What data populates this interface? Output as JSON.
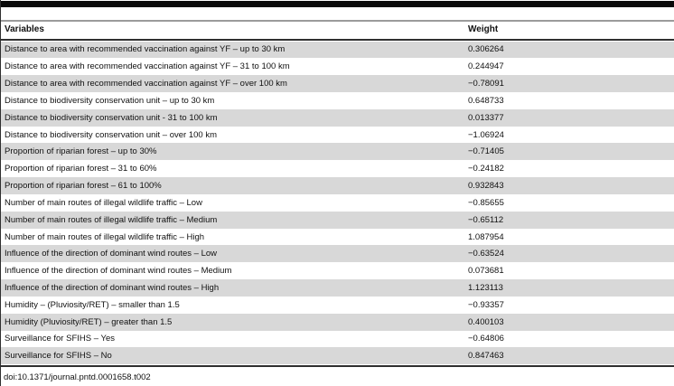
{
  "colors": {
    "top_bar": "#0a0a0a",
    "rule_gray": "#9b9b9b",
    "rule_dark": "#2f2f2f",
    "row_shade": "#d8d8d8"
  },
  "table": {
    "columns": [
      "Variables",
      "Weight"
    ],
    "rows": [
      {
        "variable": "Distance to area with recommended vaccination against YF – up to 30 km",
        "weight": "0.306264"
      },
      {
        "variable": "Distance to area with recommended vaccination against YF – 31 to 100 km",
        "weight": "0.244947"
      },
      {
        "variable": "Distance to area with recommended vaccination against YF – over 100 km",
        "weight": "−0.78091"
      },
      {
        "variable": "Distance to biodiversity conservation unit – up to 30 km",
        "weight": "0.648733"
      },
      {
        "variable": "Distance to biodiversity conservation unit - 31 to 100 km",
        "weight": "0.013377"
      },
      {
        "variable": "Distance to biodiversity conservation unit – over 100 km",
        "weight": "−1.06924"
      },
      {
        "variable": "Proportion of riparian forest – up to 30%",
        "weight": "−0.71405"
      },
      {
        "variable": "Proportion of riparian forest – 31 to 60%",
        "weight": "−0.24182"
      },
      {
        "variable": "Proportion of riparian forest – 61 to 100%",
        "weight": "0.932843"
      },
      {
        "variable": "Number of main routes of illegal wildlife traffic – Low",
        "weight": "−0.85655"
      },
      {
        "variable": "Number of main routes of illegal wildlife traffic – Medium",
        "weight": "−0.65112"
      },
      {
        "variable": "Number of main routes of illegal wildlife traffic – High",
        "weight": "1.087954"
      },
      {
        "variable": "Influence of the direction of dominant wind routes – Low",
        "weight": "−0.63524"
      },
      {
        "variable": "Influence of the direction of dominant wind routes – Medium",
        "weight": "0.073681"
      },
      {
        "variable": "Influence of the direction of dominant wind routes – High",
        "weight": "1.123113"
      },
      {
        "variable": "Humidity – (Pluviosity/RET) – smaller than 1.5",
        "weight": "−0.93357"
      },
      {
        "variable": "Humidity (Pluviosity/RET) – greater than 1.5",
        "weight": "0.400103"
      },
      {
        "variable": "Surveillance for SFIHS – Yes",
        "weight": "−0.64806"
      },
      {
        "variable": "Surveillance for SFIHS – No",
        "weight": "0.847463"
      }
    ]
  },
  "footer": {
    "doi": "doi:10.1371/journal.pntd.0001658.t002"
  }
}
